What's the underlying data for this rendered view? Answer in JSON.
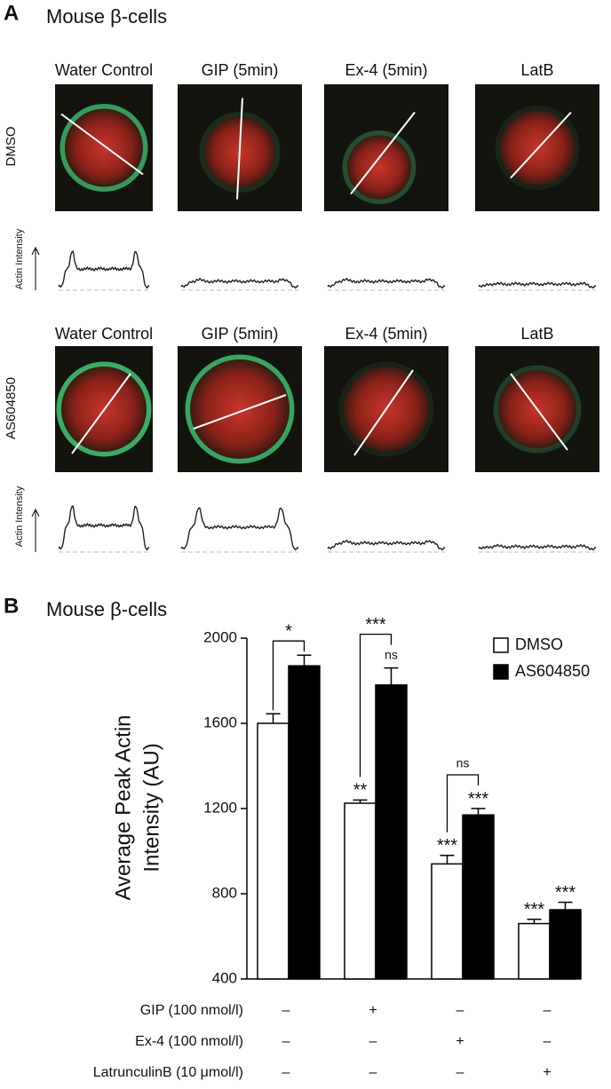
{
  "panel_a": {
    "label": "A",
    "title": "Mouse β-cells",
    "rows": [
      {
        "label": "DMSO",
        "columns": [
          "Water Control",
          "GIP (5min)",
          "Ex-4 (5min)",
          "LatB"
        ],
        "trace_label": "Actin Intensity"
      },
      {
        "label": "AS604850",
        "columns": [
          "Water Control",
          "GIP (5min)",
          "Ex-4 (5min)",
          "LatB"
        ],
        "trace_label": "Actin Intensity"
      }
    ]
  },
  "chart_data": {
    "type": "bar",
    "panel_label": "B",
    "title": "Mouse β-cells",
    "y_label": [
      "Average Peak Actin",
      "Intensity (AU)"
    ],
    "categories": [
      null,
      null,
      null,
      null
    ],
    "ylim": [
      400,
      2000
    ],
    "yticks": [
      400,
      800,
      1200,
      1600,
      2000
    ],
    "legend": "top-right",
    "series": [
      {
        "name": "DMSO",
        "color": "#ffffff",
        "values": [
          1600,
          1225,
          940,
          660
        ],
        "errors": [
          45,
          15,
          40,
          20
        ],
        "marks": [
          null,
          "**",
          "***",
          "***"
        ]
      },
      {
        "name": "AS604850",
        "color": "#000000",
        "values": [
          1870,
          1780,
          1170,
          725
        ],
        "errors": [
          50,
          80,
          30,
          35
        ],
        "marks": [
          null,
          "ns",
          "***",
          "***"
        ]
      }
    ],
    "bracket_labels": [
      "*",
      "***",
      "ns",
      null
    ],
    "conditions": [
      {
        "label": "GIP (100 nmol/l)",
        "values": [
          "–",
          "+",
          "–",
          "–"
        ]
      },
      {
        "label": "Ex-4 (100 nmol/l)",
        "values": [
          "–",
          "–",
          "+",
          "–"
        ]
      },
      {
        "label": "LatrunculinB (10 μmol/l)",
        "values": [
          "–",
          "–",
          "–",
          "+"
        ]
      }
    ]
  }
}
